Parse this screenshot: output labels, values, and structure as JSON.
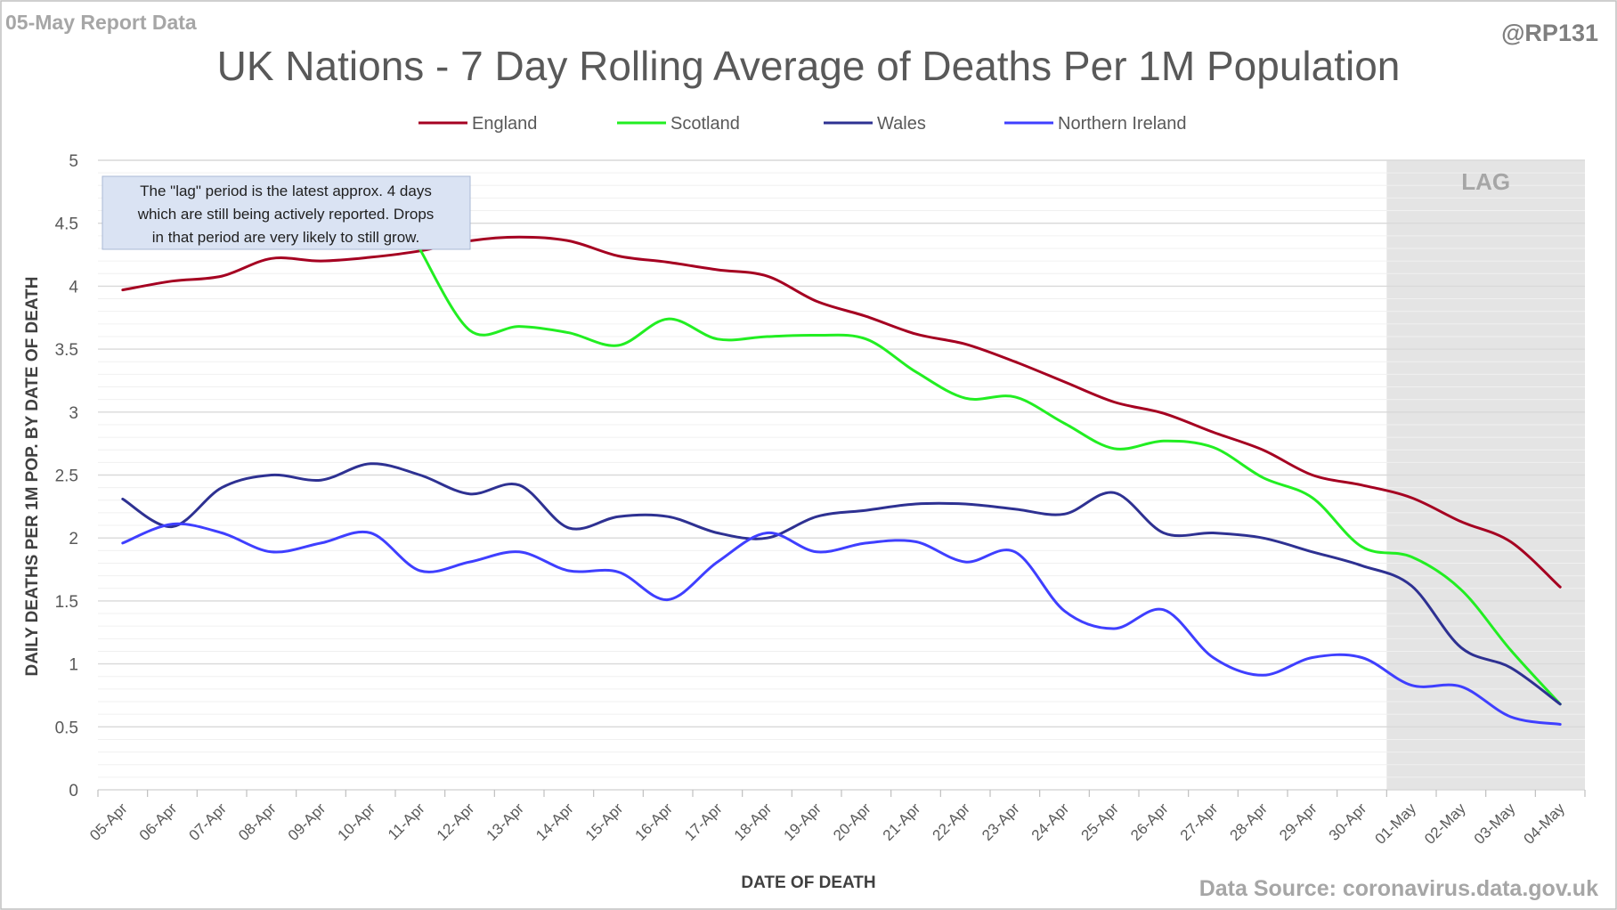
{
  "corner_left": "05-May Report Data",
  "corner_right": "@RP131",
  "source_note": "Data Source: coronavirus.data.gov.uk",
  "lag_label": "LAG",
  "annotation": [
    "The \"lag\" period is the latest approx. 4 days",
    "which are still being actively reported.  Drops",
    "in that period are very likely to still grow."
  ],
  "chart_data": {
    "type": "line",
    "title": "UK Nations - 7 Day Rolling Average of Deaths Per 1M Population",
    "xlabel": "DATE OF DEATH",
    "ylabel": "DAILY DEATHS PER 1M POP. BY DATE OF DEATH",
    "ylim": [
      0,
      5
    ],
    "yticks": [
      "0",
      "0.5",
      "1",
      "1.5",
      "2",
      "2.5",
      "3",
      "3.5",
      "4",
      "4.5",
      "5"
    ],
    "grid": true,
    "legend_position": "top",
    "lag_period": {
      "from": "01-May",
      "to": "04-May"
    },
    "categories": [
      "05-Apr",
      "06-Apr",
      "07-Apr",
      "08-Apr",
      "09-Apr",
      "10-Apr",
      "11-Apr",
      "12-Apr",
      "13-Apr",
      "14-Apr",
      "15-Apr",
      "16-Apr",
      "17-Apr",
      "18-Apr",
      "19-Apr",
      "20-Apr",
      "21-Apr",
      "22-Apr",
      "23-Apr",
      "24-Apr",
      "25-Apr",
      "26-Apr",
      "27-Apr",
      "28-Apr",
      "29-Apr",
      "30-Apr",
      "01-May",
      "02-May",
      "03-May",
      "04-May"
    ],
    "series": [
      {
        "name": "England",
        "color": "#a50021",
        "values": [
          3.97,
          4.04,
          4.08,
          4.22,
          4.2,
          4.23,
          4.28,
          4.36,
          4.39,
          4.36,
          4.24,
          4.19,
          4.13,
          4.08,
          3.88,
          3.76,
          3.62,
          3.54,
          3.4,
          3.24,
          3.08,
          2.99,
          2.84,
          2.7,
          2.5,
          2.42,
          2.32,
          2.13,
          1.97,
          1.61
        ]
      },
      {
        "name": "Scotland",
        "color": "#22ee22",
        "values": [
          null,
          null,
          null,
          null,
          null,
          null,
          4.29,
          3.65,
          3.68,
          3.63,
          3.53,
          3.74,
          3.58,
          3.6,
          3.61,
          3.58,
          3.32,
          3.11,
          3.12,
          2.91,
          2.71,
          2.77,
          2.72,
          2.48,
          2.32,
          1.93,
          1.85,
          1.59,
          1.11,
          0.68
        ]
      },
      {
        "name": "Wales",
        "color": "#2e3192",
        "values": [
          2.31,
          2.09,
          2.4,
          2.5,
          2.46,
          2.59,
          2.5,
          2.35,
          2.42,
          2.08,
          2.17,
          2.17,
          2.04,
          2.0,
          2.17,
          2.22,
          2.27,
          2.27,
          2.23,
          2.19,
          2.36,
          2.04,
          2.04,
          2.0,
          1.89,
          1.78,
          1.62,
          1.13,
          0.97,
          0.68
        ]
      },
      {
        "name": "Northern Ireland",
        "color": "#3f3fff",
        "values": [
          1.96,
          2.11,
          2.04,
          1.89,
          1.96,
          2.04,
          1.74,
          1.81,
          1.89,
          1.74,
          1.73,
          1.51,
          1.81,
          2.04,
          1.89,
          1.96,
          1.97,
          1.81,
          1.89,
          1.42,
          1.28,
          1.43,
          1.05,
          0.91,
          1.05,
          1.05,
          0.83,
          0.82,
          0.58,
          0.52
        ]
      }
    ]
  }
}
